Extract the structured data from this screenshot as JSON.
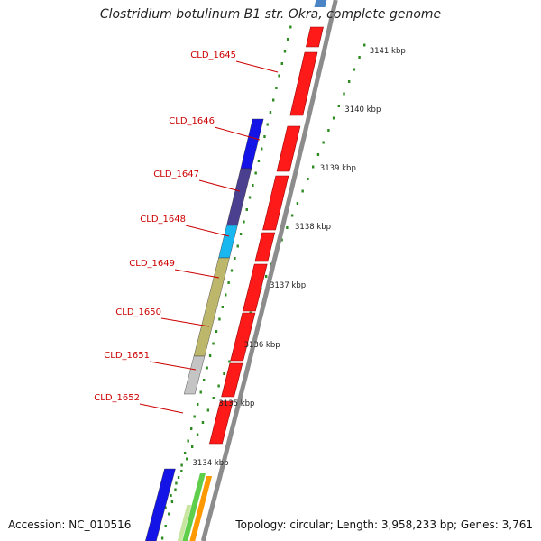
{
  "title": "Clostridium botulinum B1 str. Okra, complete genome",
  "footer": {
    "accession": "Accession: NC_010516",
    "summary": "Topology: circular; Length: 3,958,233 bp; Genes: 3,761"
  },
  "colors": {
    "backbone": "#8c8c8c",
    "forward_cds": "#ff1a1a",
    "label_text": "#cc0000",
    "scale_dots": "#2e8b22",
    "kbp_text": "#222222"
  },
  "scale_ticks": [
    "3141 kbp",
    "3140 kbp",
    "3139 kbp",
    "3138 kbp",
    "3137 kbp",
    "3136 kbp",
    "3135 kbp",
    "3134 kbp"
  ],
  "gene_labels": [
    "CLD_1645",
    "CLD_1646",
    "CLD_1647",
    "CLD_1648",
    "CLD_1649",
    "CLD_1650",
    "CLD_1651",
    "CLD_1652"
  ],
  "reverse_features": [
    {
      "name": "CLD_1646",
      "color": "#1414e6"
    },
    {
      "name": "CLD_1647",
      "color": "#4b3f8f"
    },
    {
      "name": "CLD_1648",
      "color": "#19b7ef"
    },
    {
      "name": "CLD_1649-1650",
      "color": "#bdb76b"
    },
    {
      "name": "CLD_1651",
      "color": "#c4c4c4"
    },
    {
      "name": "lower-blue",
      "color": "#1414e6"
    }
  ],
  "side_features": [
    "#5fce4a",
    "#ff9900",
    "#c8e6a0"
  ],
  "top_feature_color": "#4a84c4"
}
